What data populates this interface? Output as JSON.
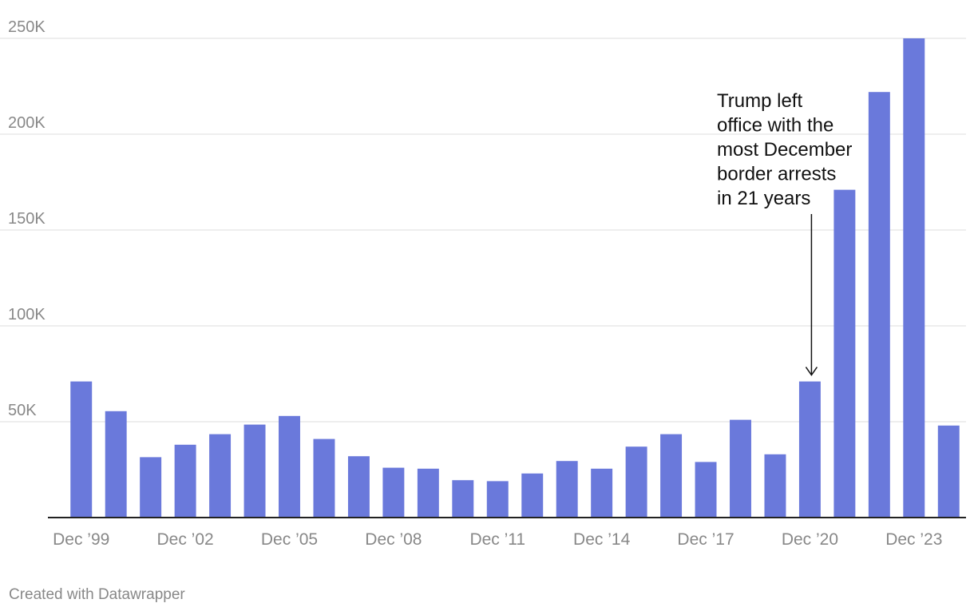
{
  "chart_data": {
    "type": "bar",
    "categories": [
      "Dec '99",
      "Dec '00",
      "Dec '01",
      "Dec '02",
      "Dec '03",
      "Dec '04",
      "Dec '05",
      "Dec '06",
      "Dec '07",
      "Dec '08",
      "Dec '09",
      "Dec '10",
      "Dec '11",
      "Dec '12",
      "Dec '13",
      "Dec '14",
      "Dec '15",
      "Dec '16",
      "Dec '17",
      "Dec '18",
      "Dec '19",
      "Dec '20",
      "Dec '21",
      "Dec '22",
      "Dec '23",
      "Dec '24"
    ],
    "values": [
      71000,
      55500,
      31500,
      38000,
      43500,
      48500,
      53000,
      41000,
      32000,
      26000,
      25500,
      19500,
      19000,
      23000,
      29500,
      25500,
      37000,
      43500,
      29000,
      51000,
      33000,
      71000,
      171000,
      222000,
      250000,
      48000
    ],
    "x_tick_labels": [
      "Dec ’99",
      "Dec ’02",
      "Dec ’05",
      "Dec ’08",
      "Dec ’11",
      "Dec ’14",
      "Dec ’17",
      "Dec ’20",
      "Dec ’23"
    ],
    "x_tick_indices": [
      0,
      3,
      6,
      9,
      12,
      15,
      18,
      21,
      24
    ],
    "y_ticks": [
      50000,
      100000,
      150000,
      200000,
      250000
    ],
    "y_tick_labels": [
      "50K",
      "100K",
      "150K",
      "200K",
      "250K"
    ],
    "ylim": [
      0,
      250000
    ],
    "grid": true,
    "title": "",
    "xlabel": "",
    "ylabel": "",
    "bar_color": "#6a79db",
    "annotation": {
      "lines": [
        "Trump left",
        "office with the",
        "most December",
        "border arrests",
        "in 21 years"
      ],
      "target_index": 21
    }
  },
  "footer": {
    "credit": "Created with Datawrapper"
  }
}
